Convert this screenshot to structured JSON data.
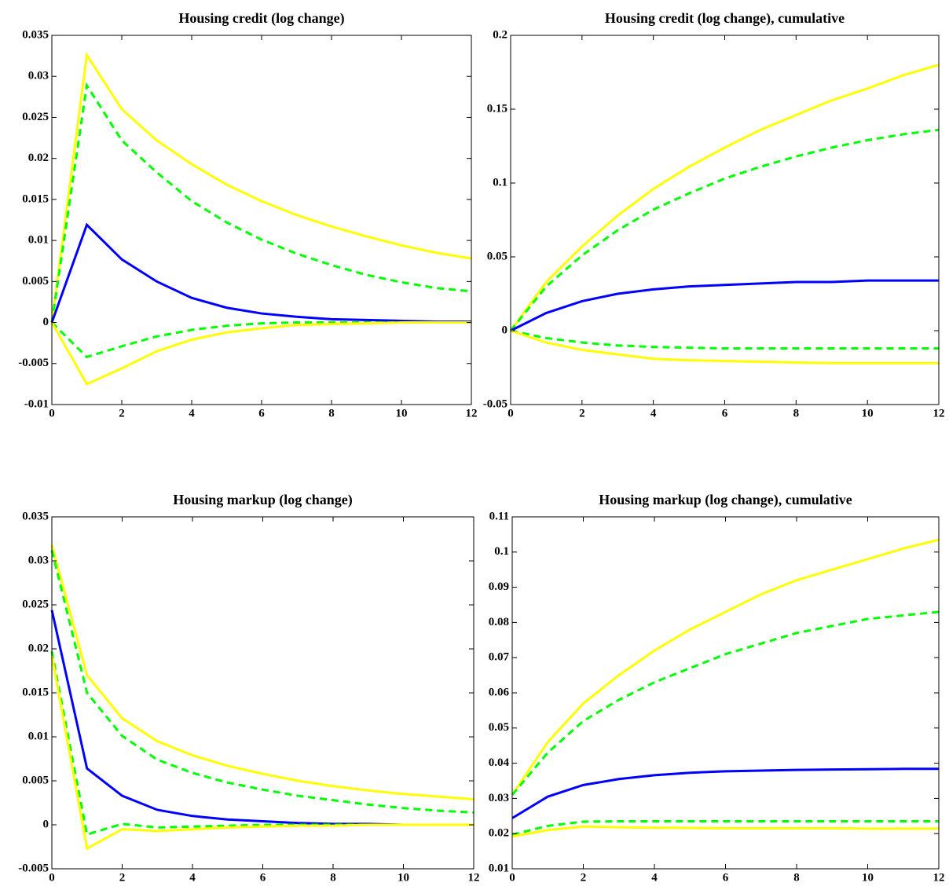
{
  "chart_data": [
    {
      "type": "line",
      "title": "Housing credit (log change)",
      "x": [
        0,
        1,
        2,
        3,
        4,
        5,
        6,
        7,
        8,
        9,
        10,
        11,
        12
      ],
      "xlim": [
        0,
        12
      ],
      "xticks": [
        0,
        2,
        4,
        6,
        8,
        10,
        12
      ],
      "ylim": [
        -0.01,
        0.035
      ],
      "yticks": [
        -0.01,
        -0.005,
        0,
        0.005,
        0.01,
        0.015,
        0.02,
        0.025,
        0.03,
        0.035
      ],
      "grid": false,
      "series": [
        {
          "color": "#ffff00",
          "style": "solid",
          "values": [
            0,
            0.0326,
            0.026,
            0.0222,
            0.0193,
            0.0168,
            0.0148,
            0.0131,
            0.0117,
            0.0105,
            0.0094,
            0.0085,
            0.0078
          ]
        },
        {
          "color": "#00ff00",
          "style": "dashed",
          "values": [
            0,
            0.0289,
            0.0222,
            0.0183,
            0.0148,
            0.0122,
            0.0101,
            0.0084,
            0.007,
            0.0058,
            0.0049,
            0.0042,
            0.0038
          ]
        },
        {
          "color": "#0000ff",
          "style": "solid",
          "values": [
            0,
            0.0119,
            0.0077,
            0.005,
            0.003,
            0.0018,
            0.0011,
            0.0007,
            0.0004,
            0.0003,
            0.0002,
            0.0001,
            0.0001
          ]
        },
        {
          "color": "#00ff00",
          "style": "dashed",
          "values": [
            0,
            -0.0042,
            -0.0029,
            -0.0017,
            -0.0009,
            -0.0004,
            -0.0001,
            0,
            0,
            0,
            0,
            0,
            0
          ]
        },
        {
          "color": "#ffff00",
          "style": "solid",
          "values": [
            0,
            -0.0075,
            -0.0056,
            -0.0035,
            -0.0021,
            -0.0012,
            -0.0007,
            -0.0003,
            -0.0002,
            -0.0001,
            0,
            0,
            0
          ]
        }
      ]
    },
    {
      "type": "line",
      "title": "Housing credit (log change), cumulative",
      "x": [
        0,
        1,
        2,
        3,
        4,
        5,
        6,
        7,
        8,
        9,
        10,
        11,
        12
      ],
      "xlim": [
        0,
        12
      ],
      "xticks": [
        0,
        2,
        4,
        6,
        8,
        10,
        12
      ],
      "ylim": [
        -0.05,
        0.2
      ],
      "yticks": [
        -0.05,
        0,
        0.05,
        0.1,
        0.15,
        0.2
      ],
      "grid": false,
      "series": [
        {
          "color": "#ffff00",
          "style": "solid",
          "values": [
            0,
            0.033,
            0.057,
            0.078,
            0.096,
            0.111,
            0.124,
            0.136,
            0.146,
            0.156,
            0.164,
            0.173,
            0.18
          ]
        },
        {
          "color": "#00ff00",
          "style": "dashed",
          "values": [
            0,
            0.03,
            0.051,
            0.068,
            0.082,
            0.093,
            0.103,
            0.111,
            0.118,
            0.124,
            0.129,
            0.133,
            0.136
          ]
        },
        {
          "color": "#0000ff",
          "style": "solid",
          "values": [
            0,
            0.012,
            0.02,
            0.025,
            0.028,
            0.03,
            0.031,
            0.032,
            0.033,
            0.033,
            0.034,
            0.034,
            0.034
          ]
        },
        {
          "color": "#00ff00",
          "style": "dashed",
          "values": [
            0,
            -0.005,
            -0.008,
            -0.01,
            -0.011,
            -0.0115,
            -0.012,
            -0.012,
            -0.012,
            -0.012,
            -0.012,
            -0.012,
            -0.012
          ]
        },
        {
          "color": "#ffff00",
          "style": "solid",
          "values": [
            0,
            -0.008,
            -0.013,
            -0.016,
            -0.019,
            -0.02,
            -0.0205,
            -0.021,
            -0.0215,
            -0.022,
            -0.022,
            -0.022,
            -0.022
          ]
        }
      ]
    },
    {
      "type": "line",
      "title": "Housing markup (log change)",
      "x": [
        0,
        1,
        2,
        3,
        4,
        5,
        6,
        7,
        8,
        9,
        10,
        11,
        12
      ],
      "xlim": [
        0,
        12
      ],
      "xticks": [
        0,
        2,
        4,
        6,
        8,
        10,
        12
      ],
      "ylim": [
        -0.005,
        0.035
      ],
      "yticks": [
        -0.005,
        0,
        0.005,
        0.01,
        0.015,
        0.02,
        0.025,
        0.03,
        0.035
      ],
      "grid": false,
      "series": [
        {
          "color": "#ffff00",
          "style": "solid",
          "values": [
            0.0318,
            0.017,
            0.0121,
            0.0095,
            0.0079,
            0.0067,
            0.0058,
            0.005,
            0.0044,
            0.0039,
            0.0035,
            0.0032,
            0.0029
          ]
        },
        {
          "color": "#00ff00",
          "style": "dashed",
          "values": [
            0.0312,
            0.015,
            0.0101,
            0.0074,
            0.0059,
            0.0048,
            0.004,
            0.0033,
            0.0028,
            0.0023,
            0.0019,
            0.0016,
            0.0014
          ]
        },
        {
          "color": "#0000ff",
          "style": "solid",
          "values": [
            0.0244,
            0.0064,
            0.0033,
            0.0017,
            0.001,
            0.0006,
            0.0004,
            0.0002,
            0.0001,
            0.0001,
            0,
            0,
            0
          ]
        },
        {
          "color": "#00ff00",
          "style": "dashed",
          "values": [
            0.0197,
            -0.0011,
            0.0001,
            -0.0003,
            -0.0002,
            -0.0001,
            0,
            0,
            0,
            0,
            0,
            0,
            0
          ]
        },
        {
          "color": "#ffff00",
          "style": "solid",
          "values": [
            0.0192,
            -0.0027,
            -0.0005,
            -0.0007,
            -0.0005,
            -0.0003,
            -0.0002,
            -0.0001,
            -0.0001,
            0,
            0,
            0,
            0
          ]
        }
      ]
    },
    {
      "type": "line",
      "title": "Housing markup (log change), cumulative",
      "x": [
        0,
        1,
        2,
        3,
        4,
        5,
        6,
        7,
        8,
        9,
        10,
        11,
        12
      ],
      "xlim": [
        0,
        12
      ],
      "xticks": [
        0,
        2,
        4,
        6,
        8,
        10,
        12
      ],
      "ylim": [
        0.01,
        0.11
      ],
      "yticks": [
        0.01,
        0.02,
        0.03,
        0.04,
        0.05,
        0.06,
        0.07,
        0.08,
        0.09,
        0.1,
        0.11
      ],
      "grid": false,
      "series": [
        {
          "color": "#ffff00",
          "style": "solid",
          "values": [
            0.031,
            0.046,
            0.057,
            0.065,
            0.072,
            0.078,
            0.083,
            0.088,
            0.092,
            0.095,
            0.098,
            0.101,
            0.1035
          ]
        },
        {
          "color": "#00ff00",
          "style": "dashed",
          "values": [
            0.031,
            0.043,
            0.052,
            0.058,
            0.063,
            0.067,
            0.071,
            0.074,
            0.077,
            0.079,
            0.081,
            0.082,
            0.083
          ]
        },
        {
          "color": "#0000ff",
          "style": "solid",
          "values": [
            0.0244,
            0.0305,
            0.0338,
            0.0355,
            0.0366,
            0.0373,
            0.0377,
            0.0379,
            0.0381,
            0.0382,
            0.0383,
            0.0384,
            0.0384
          ]
        },
        {
          "color": "#00ff00",
          "style": "dashed",
          "values": [
            0.0197,
            0.0222,
            0.0234,
            0.0235,
            0.0235,
            0.0235,
            0.0235,
            0.0235,
            0.0235,
            0.0235,
            0.0235,
            0.0235,
            0.0235
          ]
        },
        {
          "color": "#ffff00",
          "style": "solid",
          "values": [
            0.0192,
            0.021,
            0.022,
            0.0218,
            0.0217,
            0.0216,
            0.0215,
            0.0215,
            0.0215,
            0.0215,
            0.0214,
            0.0214,
            0.0214
          ]
        }
      ]
    }
  ]
}
